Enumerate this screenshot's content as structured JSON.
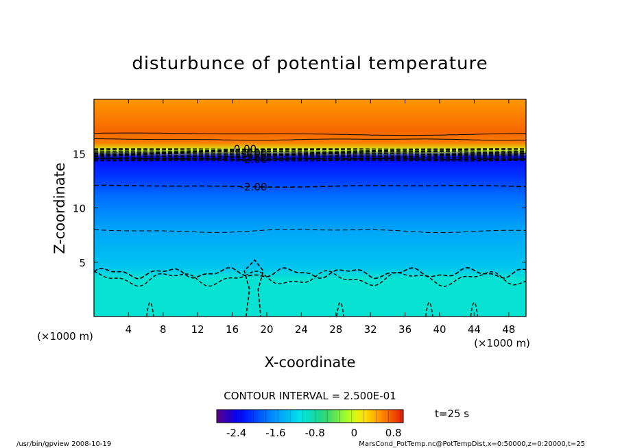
{
  "chart_data": {
    "type": "heatmap",
    "title": "disturbunce of potential temperature",
    "xlabel": "X-coordinate",
    "ylabel": "Z-coordinate",
    "x_unit": "(×1000 m)",
    "y_unit": "(×1000 m)",
    "xlim": [
      0,
      50
    ],
    "ylim": [
      0,
      20
    ],
    "x_ticks": [
      4,
      8,
      12,
      16,
      20,
      24,
      28,
      32,
      36,
      40,
      44,
      48
    ],
    "y_ticks": [
      5,
      10,
      15
    ],
    "grid": false,
    "contour_interval_label": "CONTOUR INTERVAL = 2.500E-01",
    "contour_labels": [
      {
        "text": "0.00",
        "x": 17.5,
        "z": 15.5
      },
      {
        "text": "-1.00",
        "x": 18.5,
        "z": 15.1
      },
      {
        "text": "-2.00",
        "x": 18.5,
        "z": 14.5
      },
      {
        "text": "-2.00",
        "x": 18.5,
        "z": 12.0
      }
    ],
    "vertical_profile": [
      {
        "z": 0.0,
        "value": -1.0
      },
      {
        "z": 3.5,
        "value": -1.0
      },
      {
        "z": 4.5,
        "value": -1.3
      },
      {
        "z": 8.0,
        "value": -1.5
      },
      {
        "z": 11.0,
        "value": -1.8
      },
      {
        "z": 13.0,
        "value": -2.1
      },
      {
        "z": 14.7,
        "value": -2.3
      },
      {
        "z": 15.3,
        "value": 0.0
      },
      {
        "z": 16.0,
        "value": 0.6
      },
      {
        "z": 17.0,
        "value": 0.7
      },
      {
        "z": 20.0,
        "value": 0.5
      }
    ],
    "colorbar": {
      "range": [
        -2.8,
        1.0
      ],
      "tick_values": [
        -2.4,
        -1.6,
        -0.8,
        0,
        0.8
      ],
      "tick_labels": [
        "-2.4",
        "-1.6",
        "-0.8",
        "0",
        "0.8"
      ]
    },
    "time_label": "t=25 s"
  },
  "footer": {
    "left": "/usr/bin/gpview   2008-10-19",
    "right": "MarsCond_PotTemp.nc@PotTempDist,x=0:50000,z=0:20000,t=25"
  }
}
